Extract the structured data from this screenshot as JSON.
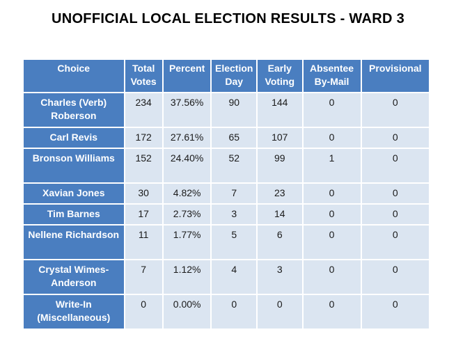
{
  "title": "UNOFFICIAL LOCAL ELECTION RESULTS - WARD 3",
  "colors": {
    "header_bg": "#4a7ec0",
    "cell_bg": "#dbe5f1",
    "header_text": "#ffffff"
  },
  "columns": [
    "Choice",
    "Total Votes",
    "Percent",
    "Election Day",
    "Early Voting",
    "Absentee By-Mail",
    "Provisional"
  ],
  "rows": [
    {
      "choice": "Charles (Verb) Roberson",
      "total": "234",
      "percent": "37.56%",
      "election_day": "90",
      "early": "144",
      "absentee": "0",
      "provisional": "0"
    },
    {
      "choice": "Carl Revis",
      "total": "172",
      "percent": "27.61%",
      "election_day": "65",
      "early": "107",
      "absentee": "0",
      "provisional": "0"
    },
    {
      "choice": "Bronson Williams",
      "total": "152",
      "percent": "24.40%",
      "election_day": "52",
      "early": "99",
      "absentee": "1",
      "provisional": "0"
    },
    {
      "choice": "Xavian Jones",
      "total": "30",
      "percent": "4.82%",
      "election_day": "7",
      "early": "23",
      "absentee": "0",
      "provisional": "0"
    },
    {
      "choice": "Tim Barnes",
      "total": "17",
      "percent": "2.73%",
      "election_day": "3",
      "early": "14",
      "absentee": "0",
      "provisional": "0"
    },
    {
      "choice": "Nellene Richardson",
      "total": "11",
      "percent": "1.77%",
      "election_day": "5",
      "early": "6",
      "absentee": "0",
      "provisional": "0"
    },
    {
      "choice": "Crystal Wimes-Anderson",
      "total": "7",
      "percent": "1.12%",
      "election_day": "4",
      "early": "3",
      "absentee": "0",
      "provisional": "0"
    },
    {
      "choice": "Write-In (Miscellaneous)",
      "total": "0",
      "percent": "0.00%",
      "election_day": "0",
      "early": "0",
      "absentee": "0",
      "provisional": "0"
    }
  ]
}
